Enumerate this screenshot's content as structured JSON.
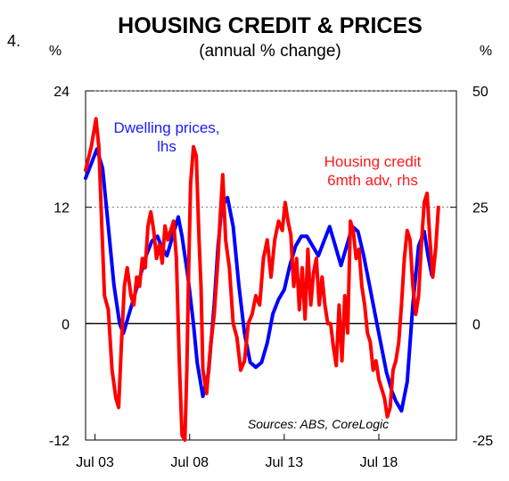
{
  "chart_data": {
    "type": "line",
    "figure_number": "4.",
    "title": "HOUSING CREDIT & PRICES",
    "subtitle": "(annual % change)",
    "left_unit": "%",
    "right_unit": "%",
    "source": "Sources: ABS, CoreLogic",
    "x_range": [
      2003.0,
      2022.6
    ],
    "x_ticks": [
      {
        "label": "Jul 03",
        "value": 2003.5
      },
      {
        "label": "Jul 08",
        "value": 2008.5
      },
      {
        "label": "Jul 13",
        "value": 2013.5
      },
      {
        "label": "Jul 18",
        "value": 2018.5
      }
    ],
    "y_left": {
      "range": [
        -12,
        24
      ],
      "ticks": [
        "-12",
        "0",
        "12",
        "24"
      ]
    },
    "y_right": {
      "range": [
        -25,
        50
      ],
      "ticks": [
        "-25",
        "0",
        "25",
        "50"
      ]
    },
    "grid": "dotted horizontal lines at 12 and 24 (lhs)",
    "series": [
      {
        "name": "Dwelling prices, lhs",
        "label_lines": [
          "Dwelling prices,",
          "lhs"
        ],
        "axis": "left",
        "color": "#0000ff",
        "x": [
          2003.0,
          2003.3,
          2003.6,
          2003.9,
          2004.2,
          2004.5,
          2004.8,
          2005.0,
          2005.3,
          2005.6,
          2005.9,
          2006.2,
          2006.5,
          2006.8,
          2007.0,
          2007.3,
          2007.6,
          2007.9,
          2008.1,
          2008.4,
          2008.7,
          2008.9,
          2009.2,
          2009.5,
          2009.8,
          2010.0,
          2010.2,
          2010.5,
          2010.8,
          2011.1,
          2011.4,
          2011.7,
          2012.0,
          2012.3,
          2012.6,
          2012.9,
          2013.2,
          2013.5,
          2013.8,
          2014.1,
          2014.4,
          2014.7,
          2015.0,
          2015.3,
          2015.6,
          2015.9,
          2016.2,
          2016.5,
          2016.8,
          2017.1,
          2017.4,
          2017.7,
          2018.0,
          2018.3,
          2018.6,
          2018.9,
          2019.2,
          2019.4,
          2019.7,
          2020.0,
          2020.3,
          2020.6,
          2020.9,
          2021.1,
          2021.3
        ],
        "values": [
          15,
          16.5,
          18,
          16,
          10,
          4,
          0,
          -1,
          1,
          3,
          5,
          7,
          8.5,
          9,
          8,
          7,
          9,
          11,
          9,
          5,
          0,
          -4,
          -7.5,
          -5,
          2,
          8,
          12,
          13,
          10,
          4,
          -1,
          -4,
          -4.5,
          -4,
          -2,
          1,
          2.5,
          3.5,
          6,
          8,
          9,
          9,
          8,
          7,
          8.5,
          10,
          8,
          6,
          8,
          10,
          9.5,
          7,
          4,
          1,
          -2,
          -5,
          -7,
          -8,
          -9,
          -6,
          2,
          8,
          9.5,
          7,
          5
        ]
      },
      {
        "name": "Housing credit 6mth adv, rhs",
        "label_lines": [
          "Housing credit",
          "6mth adv, rhs"
        ],
        "axis": "right",
        "color": "#ff0000",
        "x": [
          2003.0,
          2003.3,
          2003.55,
          2003.7,
          2003.85,
          2004.0,
          2004.2,
          2004.4,
          2004.6,
          2004.75,
          2004.9,
          2005.05,
          2005.2,
          2005.4,
          2005.55,
          2005.7,
          2005.85,
          2006.0,
          2006.15,
          2006.3,
          2006.45,
          2006.6,
          2006.75,
          2006.9,
          2007.05,
          2007.2,
          2007.35,
          2007.5,
          2007.65,
          2007.8,
          2007.95,
          2008.1,
          2008.25,
          2008.35,
          2008.45,
          2008.55,
          2008.7,
          2008.85,
          2009.0,
          2009.1,
          2009.2,
          2009.4,
          2009.6,
          2009.8,
          2010.0,
          2010.1,
          2010.25,
          2010.4,
          2010.6,
          2010.8,
          2011.0,
          2011.2,
          2011.4,
          2011.6,
          2011.8,
          2012.0,
          2012.2,
          2012.4,
          2012.6,
          2012.8,
          2013.0,
          2013.2,
          2013.4,
          2013.55,
          2013.7,
          2013.85,
          2014.0,
          2014.15,
          2014.3,
          2014.45,
          2014.6,
          2014.75,
          2014.9,
          2015.05,
          2015.2,
          2015.35,
          2015.5,
          2015.65,
          2015.8,
          2015.95,
          2016.1,
          2016.25,
          2016.4,
          2016.55,
          2016.7,
          2016.85,
          2017.0,
          2017.15,
          2017.3,
          2017.45,
          2017.6,
          2017.75,
          2017.9,
          2018.05,
          2018.2,
          2018.35,
          2018.5,
          2018.65,
          2018.8,
          2018.95,
          2019.1,
          2019.25,
          2019.4,
          2019.55,
          2019.7,
          2019.85,
          2020.0,
          2020.15,
          2020.3,
          2020.45,
          2020.6,
          2020.75,
          2020.9,
          2021.05,
          2021.2,
          2021.35,
          2021.5,
          2021.65
        ],
        "values": [
          33,
          38,
          44,
          38,
          22,
          6,
          3,
          -10,
          -16,
          -18,
          -4,
          8,
          12,
          6,
          4,
          10,
          8,
          14,
          12,
          21,
          24,
          20,
          14,
          17,
          13,
          21,
          18,
          20,
          22,
          14,
          -8,
          -24,
          -25,
          -10,
          12,
          30,
          38,
          36,
          18,
          8,
          -10,
          -15,
          -5,
          2,
          14,
          22,
          32,
          18,
          12,
          0,
          -3,
          -10,
          -8,
          0,
          2,
          6,
          4,
          14,
          18,
          10,
          18,
          22,
          20,
          26,
          22,
          19,
          8,
          14,
          3,
          12,
          1,
          16,
          4,
          11,
          14,
          4,
          10,
          4,
          0,
          0,
          -5,
          -9,
          4,
          -8,
          6,
          -2,
          22,
          20,
          14,
          16,
          8,
          4,
          -2,
          -4,
          -10,
          -8,
          -12,
          -14,
          -16,
          -20,
          -18,
          -10,
          -8,
          -4,
          4,
          14,
          20,
          18,
          8,
          2,
          6,
          17,
          26,
          28,
          18,
          10,
          16,
          25
        ]
      }
    ]
  }
}
